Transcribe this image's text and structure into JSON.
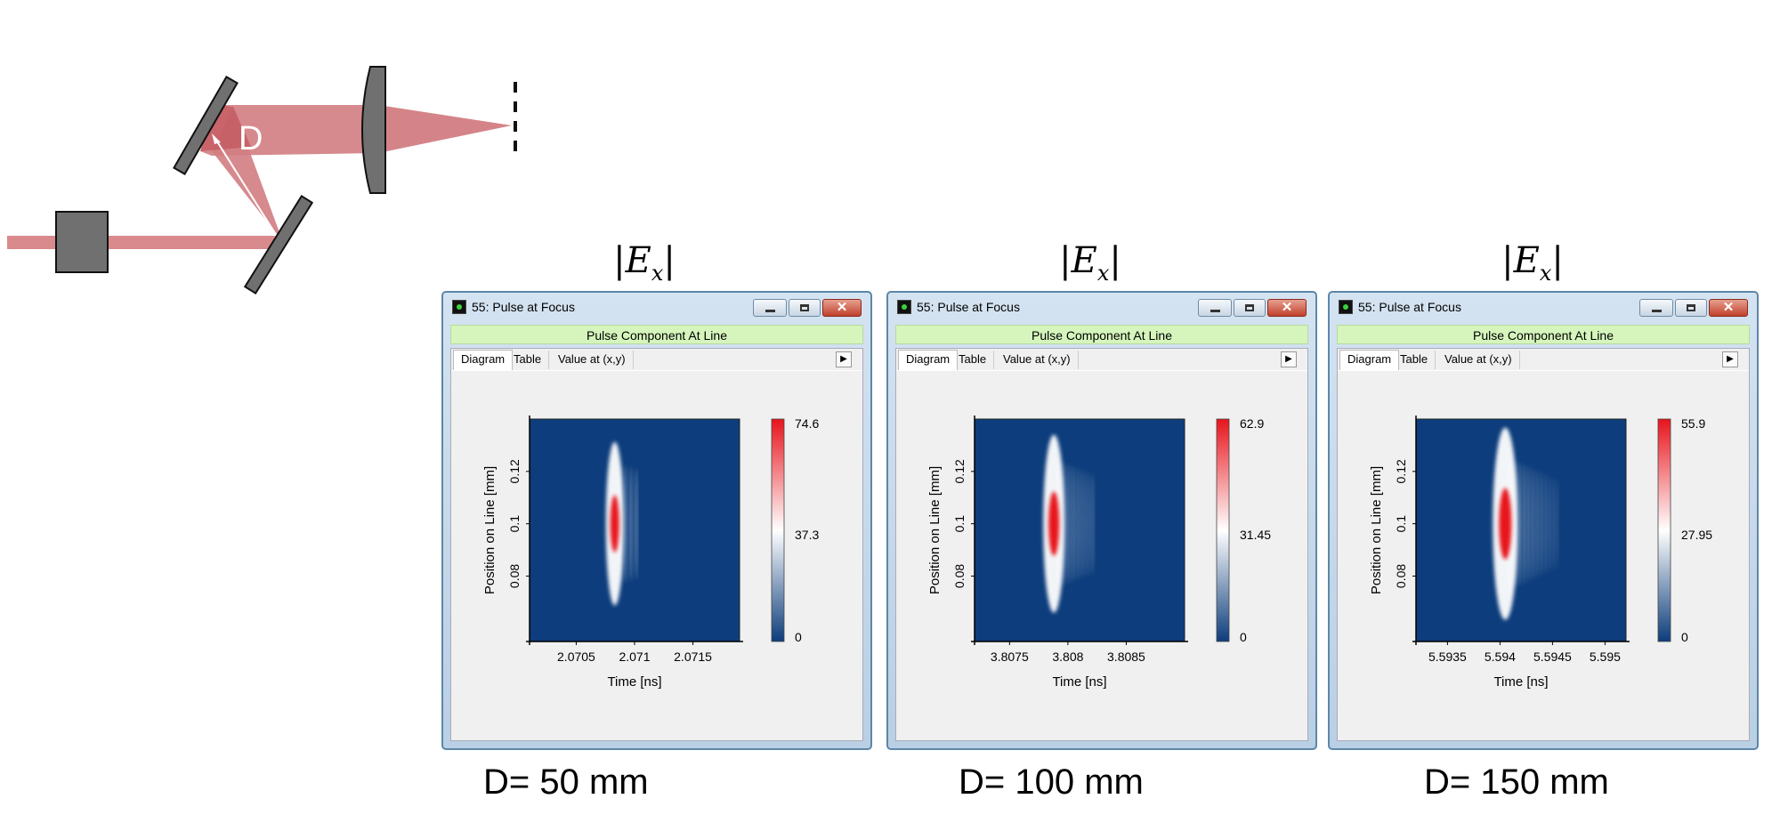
{
  "setup": {
    "distance_label": "D"
  },
  "ex_label": {
    "base": "|E",
    "sub": "x",
    "end": "|"
  },
  "panels": [
    {
      "caption": "D= 50 mm"
    },
    {
      "caption": "D= 100 mm"
    },
    {
      "caption": "D= 150 mm"
    }
  ],
  "window": {
    "title": "55: Pulse at Focus",
    "banner": "Pulse Component At Line",
    "tabs": [
      "Diagram",
      "Table",
      "Value at (x,y)"
    ],
    "active_tab": "Diagram",
    "close_glyph": "✕",
    "arrow_glyph": "▶"
  },
  "colors": {
    "colormap_low": "#0d3d7c",
    "colormap_mid": "#ffffff",
    "colormap_high": "#e8141c"
  },
  "chart_data": [
    {
      "type": "heatmap",
      "xlabel": "Time [ns]",
      "ylabel": "Position on Line [mm]",
      "xlim": [
        2.0701,
        2.0719
      ],
      "ylim": [
        0.055,
        0.14
      ],
      "xticks": [
        "2.0705",
        "2.071",
        "2.0715"
      ],
      "xtick_values": [
        2.0705,
        2.071,
        2.0715
      ],
      "yticks": [
        "0.08",
        "0.1",
        "0.12"
      ],
      "ytick_values": [
        0.08,
        0.1,
        0.12
      ],
      "colorbar": {
        "min": 0,
        "max": 74.6,
        "labels": [
          "74.6",
          "37.3",
          "0"
        ]
      },
      "pulse": {
        "center_time": 2.07083,
        "center_position": 0.1,
        "peak": 74.6
      }
    },
    {
      "type": "heatmap",
      "xlabel": "Time [ns]",
      "ylabel": "Position on Line [mm]",
      "xlim": [
        3.8072,
        3.809
      ],
      "ylim": [
        0.055,
        0.14
      ],
      "xticks": [
        "3.8075",
        "3.808",
        "3.8085"
      ],
      "xtick_values": [
        3.8075,
        3.808,
        3.8085
      ],
      "yticks": [
        "0.08",
        "0.1",
        "0.12"
      ],
      "ytick_values": [
        0.08,
        0.1,
        0.12
      ],
      "colorbar": {
        "min": 0,
        "max": 62.9,
        "labels": [
          "62.9",
          "31.45",
          "0"
        ]
      },
      "pulse": {
        "center_time": 3.80788,
        "center_position": 0.1,
        "peak": 62.9
      }
    },
    {
      "type": "heatmap",
      "xlabel": "Time [ns]",
      "ylabel": "Position on Line [mm]",
      "xlim": [
        5.5932,
        5.5952
      ],
      "ylim": [
        0.055,
        0.14
      ],
      "xticks": [
        "5.5935",
        "5.594",
        "5.5945",
        "5.595"
      ],
      "xtick_values": [
        5.5935,
        5.594,
        5.5945,
        5.595
      ],
      "yticks": [
        "0.08",
        "0.1",
        "0.12"
      ],
      "ytick_values": [
        0.08,
        0.1,
        0.12
      ],
      "colorbar": {
        "min": 0,
        "max": 55.9,
        "labels": [
          "55.9",
          "27.95",
          "0"
        ]
      },
      "pulse": {
        "center_time": 5.59405,
        "center_position": 0.1,
        "peak": 55.9
      }
    }
  ]
}
